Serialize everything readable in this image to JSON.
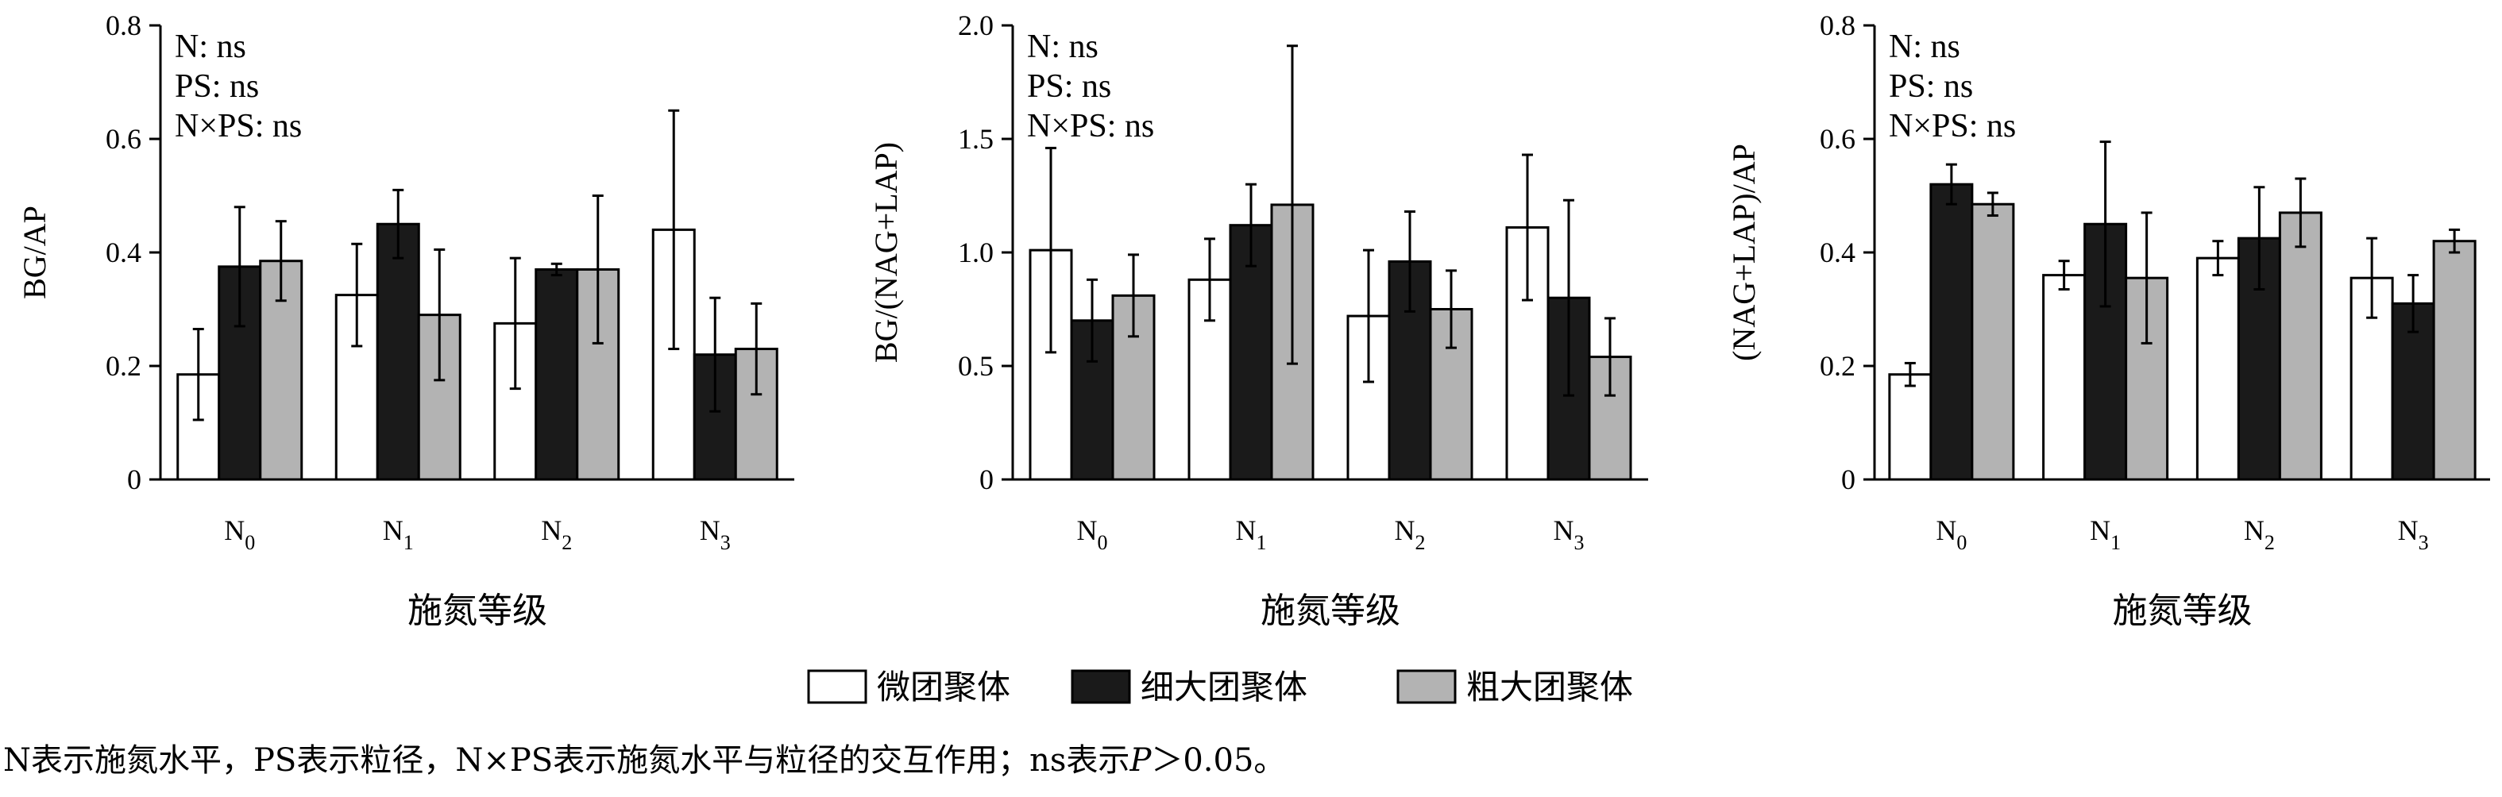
{
  "chart_data": [
    {
      "type": "bar",
      "ylabel": "BG/AP",
      "xlabel": "施氮等级",
      "categories": [
        {
          "base": "N",
          "sub": "0"
        },
        {
          "base": "N",
          "sub": "1"
        },
        {
          "base": "N",
          "sub": "2"
        },
        {
          "base": "N",
          "sub": "3"
        }
      ],
      "ylim": [
        0,
        0.8
      ],
      "yticks": [
        "0",
        "0.2",
        "0.4",
        "0.6",
        "0.8"
      ],
      "annotations": [
        "N: ns",
        "PS: ns",
        "N×PS: ns"
      ],
      "series": [
        {
          "name": "微团聚体",
          "values": [
            0.185,
            0.325,
            0.275,
            0.44
          ],
          "errors": [
            0.08,
            0.09,
            0.115,
            0.21
          ]
        },
        {
          "name": "细大团聚体",
          "values": [
            0.375,
            0.45,
            0.37,
            0.22
          ],
          "errors": [
            0.105,
            0.06,
            0.01,
            0.1
          ]
        },
        {
          "name": "粗大团聚体",
          "values": [
            0.385,
            0.29,
            0.37,
            0.23
          ],
          "errors": [
            0.07,
            0.115,
            0.13,
            0.08
          ]
        }
      ]
    },
    {
      "type": "bar",
      "ylabel": "BG/(NAG+LAP)",
      "xlabel": "施氮等级",
      "categories": [
        {
          "base": "N",
          "sub": "0"
        },
        {
          "base": "N",
          "sub": "1"
        },
        {
          "base": "N",
          "sub": "2"
        },
        {
          "base": "N",
          "sub": "3"
        }
      ],
      "ylim": [
        0,
        2.0
      ],
      "yticks": [
        "0",
        "0.5",
        "1.0",
        "1.5",
        "2.0"
      ],
      "annotations": [
        "N: ns",
        "PS: ns",
        "N×PS: ns"
      ],
      "series": [
        {
          "name": "微团聚体",
          "values": [
            1.01,
            0.88,
            0.72,
            1.11
          ],
          "errors": [
            0.45,
            0.18,
            0.29,
            0.32
          ]
        },
        {
          "name": "细大团聚体",
          "values": [
            0.7,
            1.12,
            0.96,
            0.8
          ],
          "errors": [
            0.18,
            0.18,
            0.22,
            0.43
          ]
        },
        {
          "name": "粗大团聚体",
          "values": [
            0.81,
            1.21,
            0.75,
            0.54
          ],
          "errors": [
            0.18,
            0.7,
            0.17,
            0.17
          ]
        }
      ]
    },
    {
      "type": "bar",
      "ylabel": "(NAG+LAP)/AP",
      "xlabel": "施氮等级",
      "categories": [
        {
          "base": "N",
          "sub": "0"
        },
        {
          "base": "N",
          "sub": "1"
        },
        {
          "base": "N",
          "sub": "2"
        },
        {
          "base": "N",
          "sub": "3"
        }
      ],
      "ylim": [
        0,
        0.8
      ],
      "yticks": [
        "0",
        "0.2",
        "0.4",
        "0.6",
        "0.8"
      ],
      "annotations": [
        "N: ns",
        "PS: ns",
        "N×PS: ns"
      ],
      "series": [
        {
          "name": "微团聚体",
          "values": [
            0.185,
            0.36,
            0.39,
            0.355
          ],
          "errors": [
            0.02,
            0.025,
            0.03,
            0.07
          ]
        },
        {
          "name": "细大团聚体",
          "values": [
            0.52,
            0.45,
            0.425,
            0.31
          ],
          "errors": [
            0.035,
            0.145,
            0.09,
            0.05
          ]
        },
        {
          "name": "粗大团聚体",
          "values": [
            0.485,
            0.355,
            0.47,
            0.42
          ],
          "errors": [
            0.02,
            0.115,
            0.06,
            0.02
          ]
        }
      ]
    }
  ],
  "legend": {
    "items": [
      {
        "label": "微团聚体",
        "color": "#ffffff"
      },
      {
        "label": "细大团聚体",
        "color": "#1a1a1a"
      },
      {
        "label": "粗大团聚体",
        "color": "#b3b3b3"
      }
    ]
  },
  "footnote": {
    "before_p": "N表示施氮水平，PS表示粒径，N×PS表示施氮水平与粒径的交互作用；ns表示",
    "p": "P",
    "after_p": "＞0.05。"
  }
}
